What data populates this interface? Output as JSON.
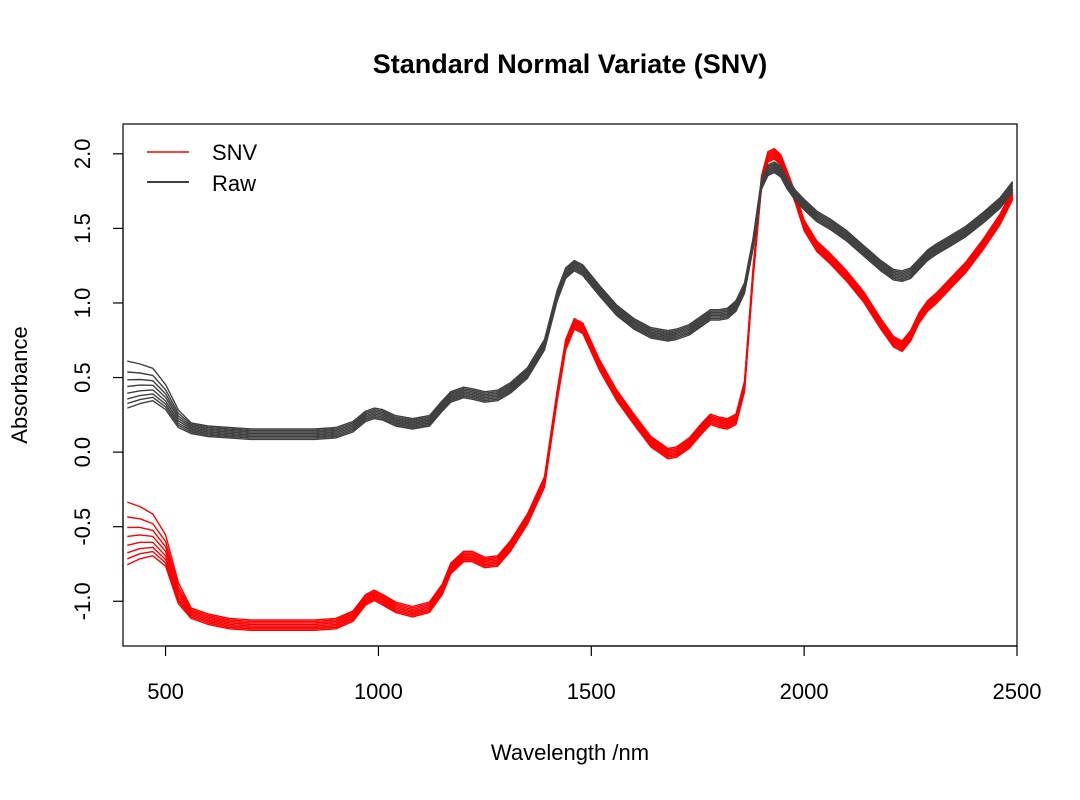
{
  "chart_data": {
    "type": "line",
    "title": "Standard Normal Variate (SNV)",
    "xlabel": "Wavelength /nm",
    "ylabel": "Absorbance",
    "xlim": [
      400,
      2500
    ],
    "ylim": [
      -1.3,
      2.2
    ],
    "xticks": [
      500,
      1000,
      1500,
      2000,
      2500
    ],
    "yticks": [
      -1.0,
      -0.5,
      0.0,
      0.5,
      1.0,
      1.5,
      2.0
    ],
    "grid": false,
    "legend": {
      "position": "top-left",
      "entries": [
        "SNV",
        "Raw"
      ]
    },
    "series": [
      {
        "name": "SNV",
        "color": "#ff0000",
        "x": [
          410,
          440,
          470,
          500,
          530,
          560,
          600,
          650,
          700,
          750,
          800,
          850,
          900,
          940,
          970,
          990,
          1010,
          1040,
          1080,
          1120,
          1150,
          1170,
          1200,
          1220,
          1250,
          1280,
          1310,
          1350,
          1390,
          1420,
          1440,
          1460,
          1480,
          1520,
          1560,
          1600,
          1640,
          1680,
          1700,
          1730,
          1760,
          1780,
          1800,
          1820,
          1840,
          1860,
          1880,
          1900,
          1915,
          1930,
          1945,
          1960,
          1980,
          2000,
          2030,
          2060,
          2100,
          2140,
          2180,
          2210,
          2230,
          2250,
          2270,
          2290,
          2310,
          2340,
          2380,
          2420,
          2460,
          2490
        ],
        "y": [
          -0.72,
          -0.68,
          -0.66,
          -0.73,
          -0.98,
          -1.08,
          -1.12,
          -1.15,
          -1.16,
          -1.16,
          -1.16,
          -1.16,
          -1.15,
          -1.1,
          -0.99,
          -0.96,
          -0.99,
          -1.04,
          -1.07,
          -1.04,
          -0.92,
          -0.78,
          -0.7,
          -0.7,
          -0.74,
          -0.73,
          -0.63,
          -0.45,
          -0.2,
          0.38,
          0.72,
          0.86,
          0.83,
          0.58,
          0.38,
          0.22,
          0.07,
          -0.01,
          -0.0,
          0.06,
          0.16,
          0.22,
          0.2,
          0.19,
          0.22,
          0.44,
          1.2,
          1.82,
          1.98,
          2.0,
          1.96,
          1.85,
          1.7,
          1.52,
          1.38,
          1.3,
          1.18,
          1.04,
          0.86,
          0.74,
          0.71,
          0.78,
          0.9,
          0.98,
          1.03,
          1.12,
          1.24,
          1.39,
          1.56,
          1.73
        ]
      },
      {
        "name": "Raw",
        "color": "#404040",
        "x": [
          410,
          440,
          470,
          500,
          530,
          560,
          600,
          650,
          700,
          750,
          800,
          850,
          900,
          940,
          970,
          990,
          1010,
          1040,
          1080,
          1120,
          1150,
          1170,
          1200,
          1220,
          1250,
          1280,
          1310,
          1350,
          1390,
          1420,
          1440,
          1460,
          1480,
          1520,
          1560,
          1600,
          1640,
          1680,
          1700,
          1730,
          1760,
          1780,
          1800,
          1820,
          1840,
          1860,
          1880,
          1900,
          1915,
          1930,
          1945,
          1960,
          1980,
          2000,
          2030,
          2060,
          2100,
          2140,
          2180,
          2210,
          2230,
          2250,
          2270,
          2290,
          2310,
          2340,
          2380,
          2420,
          2460,
          2490
        ],
        "y": [
          0.33,
          0.36,
          0.38,
          0.32,
          0.2,
          0.16,
          0.14,
          0.13,
          0.12,
          0.12,
          0.12,
          0.12,
          0.13,
          0.17,
          0.24,
          0.26,
          0.25,
          0.21,
          0.19,
          0.21,
          0.31,
          0.37,
          0.4,
          0.39,
          0.37,
          0.38,
          0.43,
          0.53,
          0.72,
          1.05,
          1.2,
          1.25,
          1.22,
          1.08,
          0.95,
          0.86,
          0.8,
          0.78,
          0.79,
          0.82,
          0.88,
          0.92,
          0.92,
          0.93,
          0.98,
          1.1,
          1.4,
          1.8,
          1.89,
          1.91,
          1.88,
          1.8,
          1.72,
          1.66,
          1.58,
          1.53,
          1.45,
          1.35,
          1.25,
          1.19,
          1.18,
          1.2,
          1.26,
          1.32,
          1.36,
          1.41,
          1.48,
          1.57,
          1.67,
          1.78
        ]
      }
    ]
  }
}
